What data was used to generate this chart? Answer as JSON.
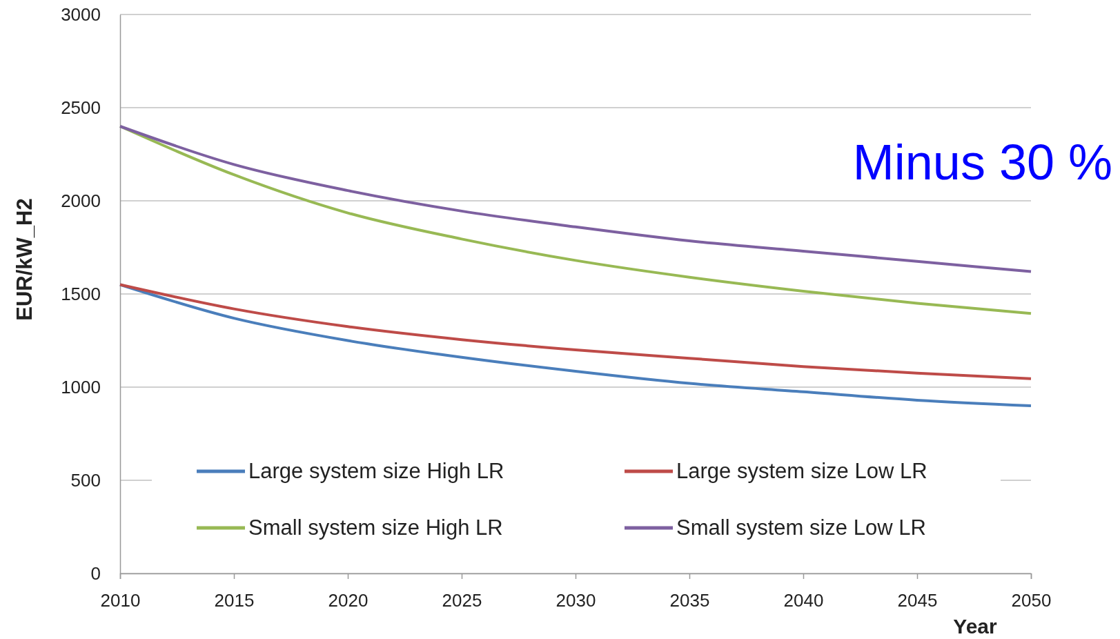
{
  "chart_data": {
    "type": "line",
    "xlabel": "Year",
    "ylabel": "EUR/kW_H2",
    "x": [
      2010,
      2015,
      2020,
      2025,
      2030,
      2035,
      2040,
      2045,
      2050
    ],
    "series": [
      {
        "name": "Large system size High LR",
        "color": "#4a7ebb",
        "values": [
          1550,
          1370,
          1250,
          1160,
          1085,
          1020,
          975,
          930,
          900
        ]
      },
      {
        "name": "Large system size Low LR",
        "color": "#be4b48",
        "values": [
          1550,
          1420,
          1325,
          1255,
          1200,
          1155,
          1110,
          1075,
          1045
        ]
      },
      {
        "name": "Small system size High LR",
        "color": "#98b954",
        "values": [
          2400,
          2140,
          1935,
          1795,
          1680,
          1590,
          1515,
          1450,
          1395
        ]
      },
      {
        "name": "Small system size Low LR",
        "color": "#7d60a0",
        "values": [
          2400,
          2195,
          2055,
          1945,
          1860,
          1785,
          1730,
          1675,
          1620
        ]
      }
    ],
    "xlim": [
      2010,
      2050
    ],
    "xticks": [
      2010,
      2015,
      2020,
      2025,
      2030,
      2035,
      2040,
      2045,
      2050
    ],
    "ylim": [
      0,
      3000
    ],
    "yticks": [
      0,
      500,
      1000,
      1500,
      2000,
      2500,
      3000
    ],
    "grid": "y",
    "legend": "bottom",
    "line_style": "solid",
    "marker": "none",
    "annotations": [
      "Minus 30 %"
    ]
  }
}
